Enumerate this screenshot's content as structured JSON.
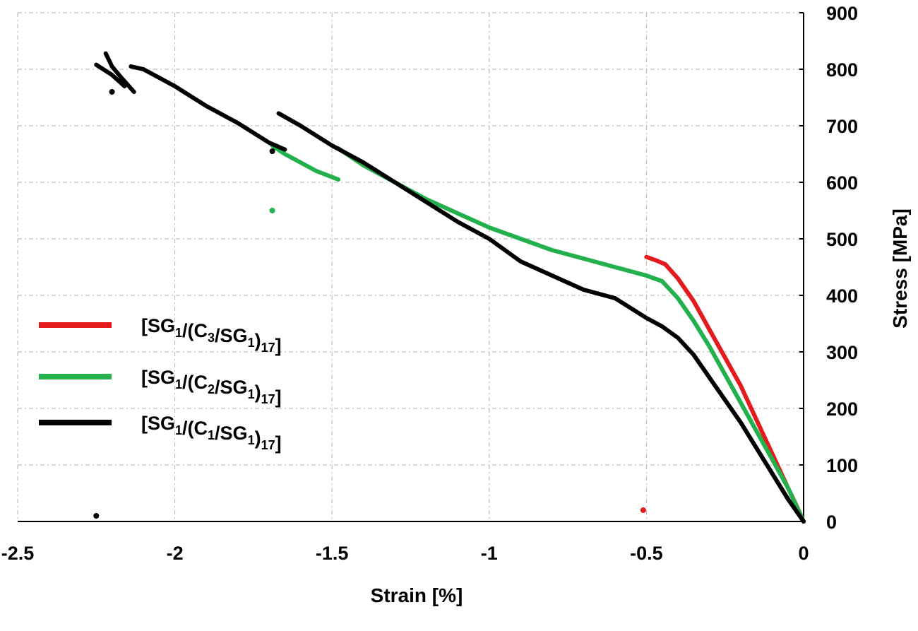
{
  "chart_data": {
    "type": "scatter",
    "title": "",
    "xlabel": "Strain [%]",
    "ylabel": "Stress [MPa]",
    "xlim": [
      -2.5,
      0
    ],
    "ylim": [
      0,
      900
    ],
    "y_axis_position": "right",
    "grid": true,
    "legend_position": "left",
    "x_ticks": [
      {
        "value": -2.5,
        "label": "-2.5"
      },
      {
        "value": -2,
        "label": "-2"
      },
      {
        "value": -1.5,
        "label": "-1.5"
      },
      {
        "value": -1,
        "label": "-1"
      },
      {
        "value": -0.5,
        "label": "-0.5"
      },
      {
        "value": 0,
        "label": "0"
      }
    ],
    "y_ticks": [
      {
        "value": 0,
        "label": "0"
      },
      {
        "value": 100,
        "label": "100"
      },
      {
        "value": 200,
        "label": "200"
      },
      {
        "value": 300,
        "label": "300"
      },
      {
        "value": 400,
        "label": "400"
      },
      {
        "value": 500,
        "label": "500"
      },
      {
        "value": 600,
        "label": "600"
      },
      {
        "value": 700,
        "label": "700"
      },
      {
        "value": 800,
        "label": "800"
      },
      {
        "value": 900,
        "label": "900"
      }
    ],
    "series": [
      {
        "name": "[SG1/(C3/SG1)17]",
        "legend": {
          "main": "[SG",
          "parts": [
            [
              "1",
              ""
            ],
            [
              "/(C",
              ""
            ],
            [
              "3",
              ""
            ],
            [
              "/SG",
              ""
            ],
            [
              "1",
              ""
            ],
            [
              ")",
              ""
            ],
            [
              "17",
              ""
            ],
            [
              "]",
              ""
            ]
          ]
        },
        "color": "#e41a1c",
        "segments": [
          [
            [
              0,
              0
            ],
            [
              -0.02,
              25
            ],
            [
              -0.05,
              60
            ],
            [
              -0.1,
              120
            ],
            [
              -0.15,
              180
            ],
            [
              -0.2,
              240
            ],
            [
              -0.25,
              290
            ],
            [
              -0.3,
              340
            ],
            [
              -0.35,
              390
            ],
            [
              -0.4,
              430
            ],
            [
              -0.44,
              455
            ],
            [
              -0.47,
              462
            ],
            [
              -0.5,
              468
            ]
          ]
        ],
        "points": [
          [
            -0.51,
            20
          ]
        ]
      },
      {
        "name": "[SG1/(C2/SG1)17]",
        "color": "#22b14c",
        "segments": [
          [
            [
              0,
              0
            ],
            [
              -0.05,
              60
            ],
            [
              -0.1,
              110
            ],
            [
              -0.15,
              160
            ],
            [
              -0.2,
              210
            ],
            [
              -0.25,
              260
            ],
            [
              -0.3,
              310
            ],
            [
              -0.35,
              355
            ],
            [
              -0.4,
              395
            ],
            [
              -0.45,
              425
            ],
            [
              -0.5,
              435
            ],
            [
              -0.6,
              450
            ],
            [
              -0.7,
              465
            ],
            [
              -0.8,
              480
            ],
            [
              -0.9,
              500
            ],
            [
              -1.0,
              520
            ],
            [
              -1.1,
              545
            ],
            [
              -1.2,
              570
            ],
            [
              -1.3,
              600
            ],
            [
              -1.4,
              630
            ],
            [
              -1.48,
              660
            ]
          ],
          [
            [
              -1.48,
              605
            ],
            [
              -1.55,
              620
            ],
            [
              -1.6,
              635
            ],
            [
              -1.65,
              650
            ],
            [
              -1.69,
              665
            ]
          ]
        ],
        "points": [
          [
            -1.69,
            550
          ]
        ]
      },
      {
        "name": "[SG1/(C1/SG1)17]",
        "color": "#000000",
        "segments": [
          [
            [
              0,
              0
            ],
            [
              -0.05,
              40
            ],
            [
              -0.1,
              85
            ],
            [
              -0.15,
              130
            ],
            [
              -0.2,
              175
            ],
            [
              -0.25,
              215
            ],
            [
              -0.3,
              255
            ],
            [
              -0.35,
              295
            ],
            [
              -0.4,
              325
            ],
            [
              -0.45,
              345
            ],
            [
              -0.5,
              360
            ],
            [
              -0.6,
              395
            ],
            [
              -0.7,
              410
            ],
            [
              -0.8,
              435
            ],
            [
              -0.9,
              460
            ],
            [
              -1.0,
              500
            ],
            [
              -1.1,
              530
            ],
            [
              -1.2,
              565
            ],
            [
              -1.3,
              600
            ],
            [
              -1.4,
              635
            ],
            [
              -1.5,
              665
            ],
            [
              -1.6,
              700
            ],
            [
              -1.67,
              722
            ]
          ],
          [
            [
              -1.65,
              658
            ],
            [
              -1.7,
              670
            ],
            [
              -1.8,
              705
            ],
            [
              -1.9,
              735
            ],
            [
              -2.0,
              770
            ],
            [
              -2.1,
              800
            ],
            [
              -2.14,
              805
            ]
          ],
          [
            [
              -2.13,
              760
            ],
            [
              -2.17,
              785
            ],
            [
              -2.2,
              805
            ],
            [
              -2.22,
              828
            ]
          ],
          [
            [
              -2.16,
              770
            ],
            [
              -2.2,
              790
            ],
            [
              -2.25,
              808
            ]
          ]
        ],
        "points": [
          [
            -2.25,
            10
          ],
          [
            -2.2,
            760
          ],
          [
            -1.69,
            655
          ]
        ]
      }
    ]
  }
}
